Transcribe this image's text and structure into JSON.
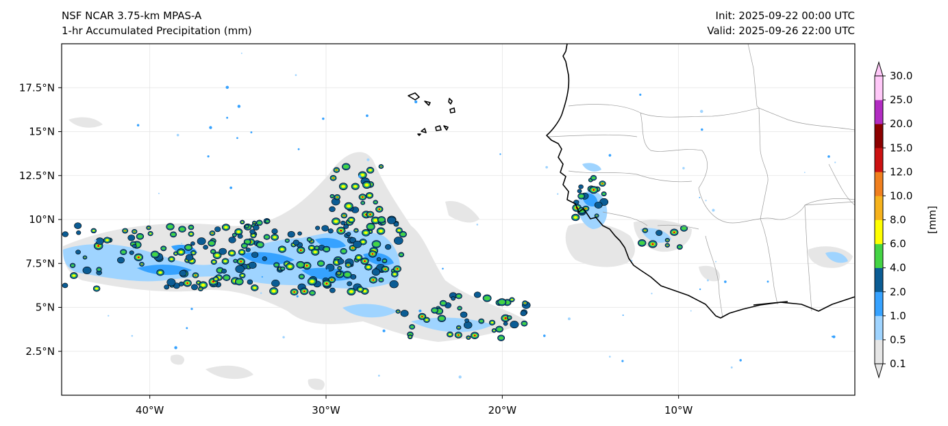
{
  "header": {
    "model": "NSF NCAR 3.75-km MPAS-A",
    "field": "1-hr Accumulated Precipitation (mm)",
    "init": "Init: 2025-09-22 00:00 UTC",
    "valid": "Valid: 2025-09-26 22:00 UTC"
  },
  "map": {
    "extent": {
      "lon": [
        -45,
        0
      ],
      "lat": [
        0,
        20
      ]
    },
    "lat_ticks": [
      {
        "value": 2.5,
        "label": "2.5°N"
      },
      {
        "value": 5,
        "label": "5°N"
      },
      {
        "value": 7.5,
        "label": "7.5°N"
      },
      {
        "value": 10,
        "label": "10°N"
      },
      {
        "value": 12.5,
        "label": "12.5°N"
      },
      {
        "value": 15,
        "label": "15°N"
      },
      {
        "value": 17.5,
        "label": "17.5°N"
      }
    ],
    "lon_ticks": [
      {
        "value": -40,
        "label": "40°W"
      },
      {
        "value": -30,
        "label": "30°W"
      },
      {
        "value": -20,
        "label": "20°W"
      },
      {
        "value": -10,
        "label": "10°W"
      }
    ],
    "gridlines": true
  },
  "colorbar": {
    "label": "[mm]",
    "levels": [
      "0.1",
      "0.5",
      "1.0",
      "2.0",
      "4.0",
      "6.0",
      "8.0",
      "10.0",
      "12.0",
      "15.0",
      "20.0",
      "25.0",
      "30.0"
    ],
    "colors": [
      "#e6e6e6",
      "#9fd4ff",
      "#36a2ff",
      "#0b5c94",
      "#44d444",
      "#ffff00",
      "#f6b21c",
      "#f07f1e",
      "#cc1111",
      "#8c0000",
      "#b22cc2",
      "#ffc8f8"
    ],
    "extend": "both"
  },
  "colors": {
    "coast": "#000000",
    "borders": "#9a9a9a",
    "grid": "#e4e4e4"
  }
}
